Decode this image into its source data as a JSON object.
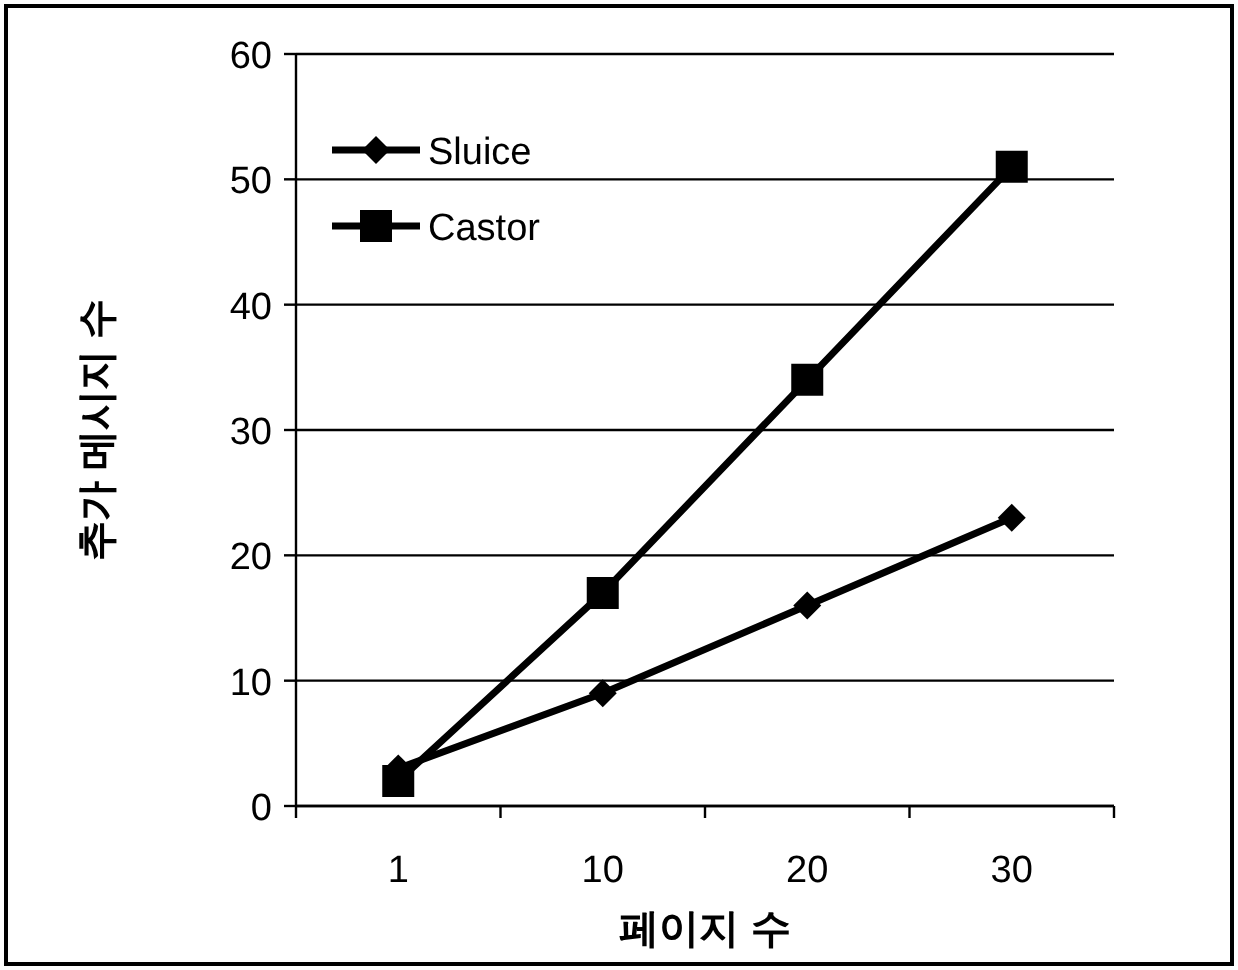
{
  "chart_data": {
    "type": "line",
    "xlabel": "페이지 수",
    "ylabel": "추가 메시지 수",
    "categories": [
      "1",
      "10",
      "20",
      "30"
    ],
    "series": [
      {
        "name": "Sluice",
        "color": "#000000",
        "marker": "diamond",
        "values": [
          3,
          9,
          16,
          23
        ]
      },
      {
        "name": "Castor",
        "color": "#000000",
        "marker": "square",
        "values": [
          2,
          17,
          34,
          51
        ]
      }
    ],
    "ylim": [
      0,
      60
    ],
    "yticks": [
      0,
      10,
      20,
      30,
      40,
      50,
      60
    ],
    "grid": "y",
    "legend": "top left"
  }
}
